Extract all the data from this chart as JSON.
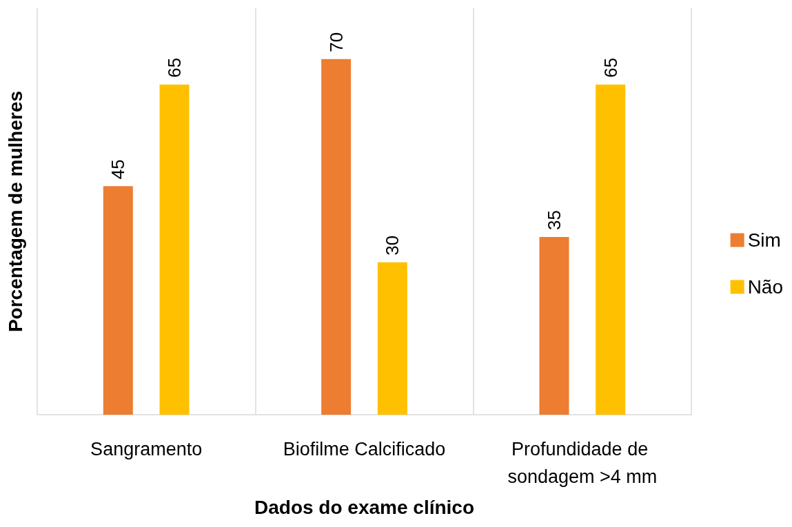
{
  "chart_data": {
    "type": "bar",
    "xlabel": "Dados do exame clínico",
    "ylabel": "Porcentagem de mulheres",
    "categories": [
      "Sangramento",
      "Biofilme Calcificado",
      "Profundidade de sondagem >4 mm"
    ],
    "series": [
      {
        "name": "Sim",
        "color": "#ed7d31",
        "values": [
          45,
          70,
          35
        ]
      },
      {
        "name": "Não",
        "color": "#ffc000",
        "values": [
          65,
          30,
          65
        ]
      }
    ],
    "ylim": [
      0,
      80
    ],
    "data_labels": true,
    "grid": "x",
    "legend": "right",
    "tick_labels": "x"
  }
}
